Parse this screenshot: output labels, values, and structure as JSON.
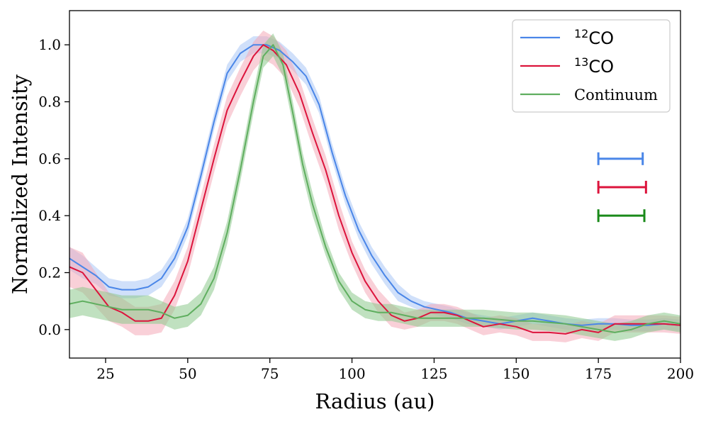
{
  "chart_data": {
    "type": "line",
    "xlabel": "Radius (au)",
    "ylabel": "Normalized Intensity",
    "xlim": [
      14,
      200
    ],
    "ylim": [
      -0.1,
      1.12
    ],
    "xticks": [
      25,
      50,
      75,
      100,
      125,
      150,
      175,
      200
    ],
    "yticks": [
      0.0,
      0.2,
      0.4,
      0.6,
      0.8,
      1.0
    ],
    "xtick_labels": [
      "25",
      "50",
      "75",
      "100",
      "125",
      "150",
      "175",
      "200"
    ],
    "ytick_labels": [
      "0.0",
      "0.2",
      "0.4",
      "0.6",
      "0.8",
      "1.0"
    ],
    "grid": false,
    "legend_position": "top-right",
    "series": [
      {
        "name_sup": "12",
        "name_main": "CO",
        "color": "#4a86e8",
        "band_color": "#a9c7f5",
        "beam": [
          175,
          188.5
        ],
        "beam_y": 0.6,
        "x": [
          14,
          18,
          22,
          26,
          30,
          34,
          38,
          42,
          46,
          50,
          54,
          58,
          62,
          66,
          70,
          74,
          78,
          82,
          86,
          90,
          94,
          98,
          102,
          106,
          110,
          114,
          118,
          122,
          126,
          130,
          135,
          140,
          145,
          150,
          155,
          160,
          165,
          170,
          175,
          180,
          185,
          190,
          195,
          200
        ],
        "y": [
          0.25,
          0.22,
          0.19,
          0.15,
          0.14,
          0.14,
          0.15,
          0.18,
          0.25,
          0.36,
          0.54,
          0.73,
          0.9,
          0.97,
          1.0,
          1.0,
          0.98,
          0.94,
          0.89,
          0.79,
          0.62,
          0.47,
          0.35,
          0.26,
          0.19,
          0.13,
          0.1,
          0.08,
          0.07,
          0.06,
          0.04,
          0.03,
          0.02,
          0.03,
          0.04,
          0.03,
          0.02,
          0.015,
          0.02,
          0.02,
          0.015,
          0.015,
          0.02,
          0.015
        ],
        "err": [
          0.04,
          0.04,
          0.03,
          0.03,
          0.03,
          0.03,
          0.03,
          0.03,
          0.03,
          0.03,
          0.03,
          0.03,
          0.03,
          0.03,
          0.03,
          0.03,
          0.03,
          0.03,
          0.03,
          0.03,
          0.03,
          0.03,
          0.03,
          0.03,
          0.03,
          0.03,
          0.02,
          0.02,
          0.02,
          0.02,
          0.02,
          0.02,
          0.02,
          0.02,
          0.02,
          0.02,
          0.02,
          0.02,
          0.02,
          0.02,
          0.02,
          0.02,
          0.02,
          0.02
        ]
      },
      {
        "name_sup": "13",
        "name_main": "CO",
        "color": "#dc143c",
        "band_color": "#f4a9b8",
        "beam": [
          175,
          189.5
        ],
        "beam_y": 0.5,
        "x": [
          14,
          18,
          22,
          26,
          30,
          34,
          38,
          42,
          46,
          50,
          54,
          58,
          62,
          66,
          70,
          73,
          76,
          80,
          84,
          88,
          92,
          96,
          100,
          104,
          108,
          112,
          116,
          120,
          124,
          128,
          132,
          136,
          140,
          145,
          150,
          155,
          160,
          165,
          170,
          175,
          180,
          185,
          190,
          195,
          200
        ],
        "y": [
          0.22,
          0.2,
          0.14,
          0.08,
          0.06,
          0.03,
          0.03,
          0.04,
          0.12,
          0.24,
          0.42,
          0.6,
          0.77,
          0.87,
          0.96,
          1.0,
          0.98,
          0.93,
          0.83,
          0.69,
          0.56,
          0.4,
          0.27,
          0.17,
          0.1,
          0.05,
          0.03,
          0.04,
          0.06,
          0.06,
          0.05,
          0.03,
          0.01,
          0.02,
          0.01,
          -0.01,
          -0.01,
          -0.015,
          0.0,
          -0.01,
          0.02,
          0.02,
          0.02,
          0.02,
          0.015
        ],
        "err": [
          0.07,
          0.07,
          0.06,
          0.05,
          0.05,
          0.05,
          0.05,
          0.05,
          0.05,
          0.05,
          0.05,
          0.05,
          0.05,
          0.05,
          0.05,
          0.05,
          0.05,
          0.05,
          0.05,
          0.05,
          0.05,
          0.05,
          0.04,
          0.04,
          0.04,
          0.04,
          0.03,
          0.03,
          0.03,
          0.03,
          0.03,
          0.03,
          0.03,
          0.03,
          0.03,
          0.03,
          0.03,
          0.03,
          0.03,
          0.03,
          0.03,
          0.03,
          0.03,
          0.03,
          0.03
        ]
      },
      {
        "name_sup": "",
        "name_main": "Continuum",
        "color": "#5fae5f",
        "band_color": "#8cc98c",
        "beam_color": "#1a8a1a",
        "beam": [
          175,
          189
        ],
        "beam_y": 0.4,
        "x": [
          14,
          18,
          22,
          26,
          30,
          34,
          38,
          42,
          46,
          50,
          54,
          58,
          62,
          66,
          70,
          73,
          76,
          79,
          82,
          85,
          88,
          92,
          96,
          100,
          104,
          108,
          112,
          116,
          120,
          125,
          130,
          135,
          140,
          145,
          150,
          155,
          160,
          165,
          170,
          175,
          180,
          185,
          190,
          195,
          200
        ],
        "y": [
          0.09,
          0.1,
          0.09,
          0.08,
          0.07,
          0.07,
          0.07,
          0.06,
          0.04,
          0.05,
          0.09,
          0.18,
          0.34,
          0.56,
          0.8,
          0.96,
          1.0,
          0.93,
          0.76,
          0.58,
          0.44,
          0.29,
          0.17,
          0.1,
          0.07,
          0.06,
          0.06,
          0.05,
          0.04,
          0.04,
          0.04,
          0.04,
          0.04,
          0.035,
          0.03,
          0.03,
          0.025,
          0.02,
          0.01,
          0.0,
          -0.01,
          0.0,
          0.02,
          0.03,
          0.02
        ],
        "err": [
          0.05,
          0.05,
          0.05,
          0.05,
          0.05,
          0.05,
          0.05,
          0.04,
          0.04,
          0.04,
          0.04,
          0.04,
          0.04,
          0.04,
          0.04,
          0.04,
          0.04,
          0.04,
          0.04,
          0.04,
          0.04,
          0.03,
          0.03,
          0.03,
          0.03,
          0.03,
          0.03,
          0.03,
          0.03,
          0.03,
          0.03,
          0.03,
          0.03,
          0.03,
          0.03,
          0.03,
          0.03,
          0.03,
          0.03,
          0.03,
          0.03,
          0.03,
          0.03,
          0.03,
          0.03
        ]
      }
    ]
  }
}
